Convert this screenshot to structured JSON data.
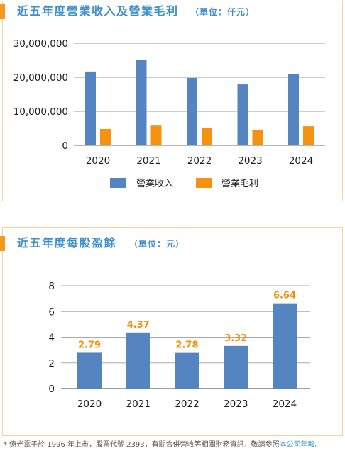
{
  "colors": {
    "title": "#3f8fcb",
    "accent": "#f39a1e",
    "box_border": "#f7cfa0",
    "data_label": "#f0900a",
    "link": "#3f8fcb",
    "footnote_text": "#555555"
  },
  "chart_data": [
    {
      "type": "bar",
      "title": "近五年度營業收入及營業毛利",
      "unit": "（單位：仟元）",
      "categories": [
        "2020",
        "2021",
        "2022",
        "2023",
        "2024"
      ],
      "series": [
        {
          "name": "營業收入",
          "color": "#5485c0",
          "values": [
            21700000,
            25200000,
            19800000,
            17900000,
            21000000
          ]
        },
        {
          "name": "營業毛利",
          "color": "#f5920f",
          "values": [
            4800000,
            6000000,
            5000000,
            4600000,
            5600000
          ]
        }
      ],
      "ylim": [
        0,
        30000000
      ],
      "yticks": [
        {
          "value": 0,
          "label": "0"
        },
        {
          "value": 10000000,
          "label": "10,000,000"
        },
        {
          "value": 20000000,
          "label": "20,000,000"
        },
        {
          "value": 30000000,
          "label": "30,000,000"
        }
      ],
      "grid": true,
      "legend": "bottom-center"
    },
    {
      "type": "bar",
      "title": "近五年度每股盈餘",
      "unit": "（單位：元）",
      "categories": [
        "2020",
        "2021",
        "2022",
        "2023",
        "2024"
      ],
      "values": [
        2.79,
        4.37,
        2.78,
        3.32,
        6.64
      ],
      "color": "#5485c0",
      "ylim": [
        0,
        8
      ],
      "yticks": [
        {
          "value": 0,
          "label": "0"
        },
        {
          "value": 2,
          "label": "2"
        },
        {
          "value": 4,
          "label": "4"
        },
        {
          "value": 6,
          "label": "6"
        },
        {
          "value": 8,
          "label": "8"
        }
      ],
      "grid": true,
      "data_labels": true
    }
  ],
  "footnote": {
    "prefix": "* 億光電子於 1996 年上市，股票代號 2393，有關合併營收等相關財務資訊，敬請參照",
    "link": "本公司年報",
    "suffix": "。"
  }
}
